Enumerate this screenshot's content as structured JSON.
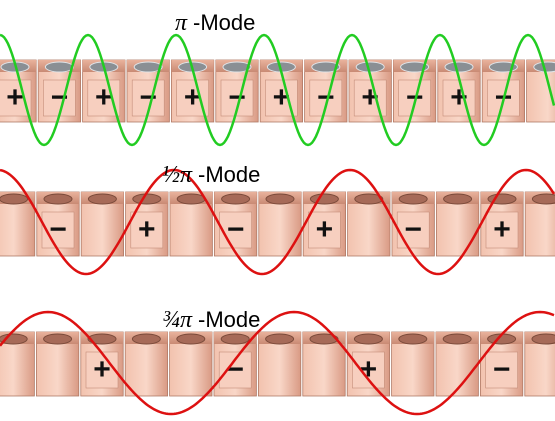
{
  "modes": [
    {
      "label": {
        "symbol": "π",
        "suffix": "-Mode"
      },
      "signs": [
        "+",
        "−",
        "+",
        "−",
        "+",
        "−",
        "+",
        "−",
        "+",
        "−",
        "+",
        "−"
      ]
    },
    {
      "label": {
        "symbol": "½π",
        "suffix": "-Mode"
      },
      "signs": [
        "−",
        "+",
        "−",
        "+",
        "−",
        "+"
      ]
    },
    {
      "label": {
        "symbol": "¾π",
        "suffix": "-Mode"
      },
      "signs": [
        "+",
        "−",
        "+",
        "−"
      ]
    }
  ]
}
